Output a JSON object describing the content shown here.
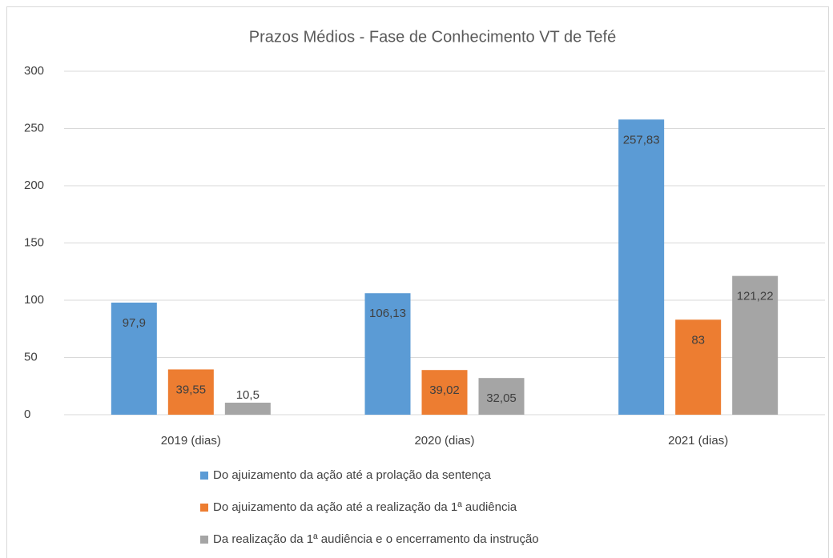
{
  "chart_data": {
    "type": "bar",
    "title": "Prazos Médios - Fase de Conhecimento VT de Tefé",
    "categories": [
      "2019 (dias)",
      "2020 (dias)",
      "2021 (dias)"
    ],
    "series": [
      {
        "name": "Do ajuizamento da ação até a prolação da sentença",
        "color": "#5b9bd5",
        "values": [
          97.9,
          106.13,
          257.83
        ],
        "value_labels": [
          "97,9",
          "106,13",
          "257,83"
        ]
      },
      {
        "name": "Do ajuizamento da ação até a realização da 1ª audiência",
        "color": "#ed7d31",
        "values": [
          39.55,
          39.02,
          83
        ],
        "value_labels": [
          "39,55",
          "39,02",
          "83"
        ]
      },
      {
        "name": "Da realização da 1ª audiência e o encerramento da instrução",
        "color": "#a5a5a5",
        "values": [
          10.5,
          32.05,
          121.22
        ],
        "value_labels": [
          "10,5",
          "32,05",
          "121,22"
        ]
      }
    ],
    "ylim": [
      0,
      300
    ],
    "yticks": [
      0,
      50,
      100,
      150,
      200,
      250,
      300
    ],
    "grid": true,
    "legend": "bottom"
  }
}
